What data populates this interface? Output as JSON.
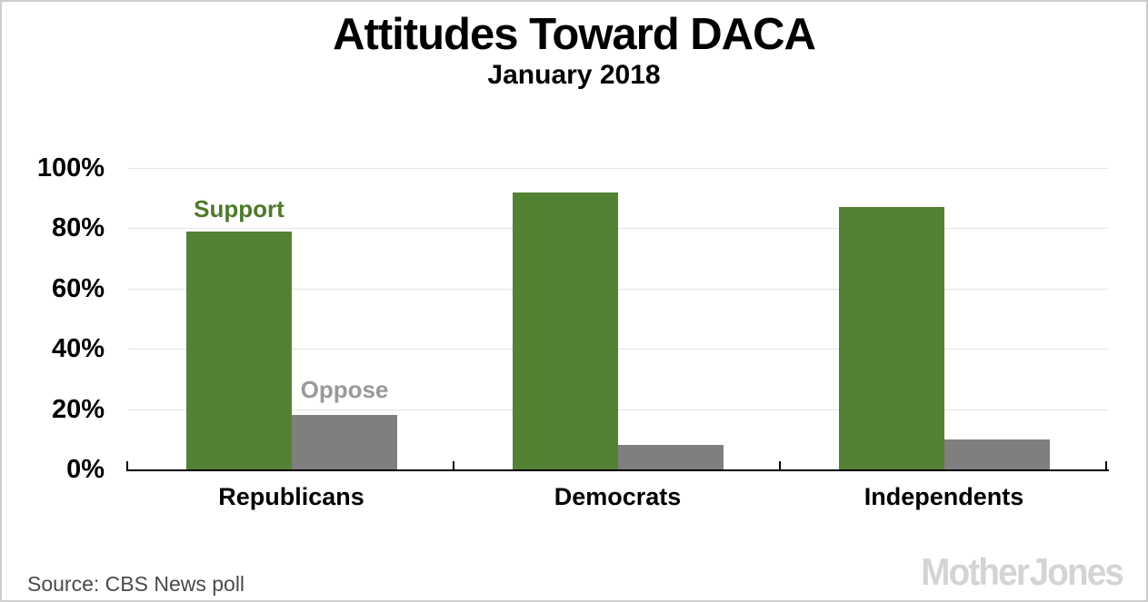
{
  "title": "Attitudes Toward DACA",
  "subtitle": "January 2018",
  "source_note": "Source: CBS News poll",
  "watermark": "Mother Jones",
  "colors": {
    "support_bar": "#548235",
    "oppose_bar": "#7f7f7f",
    "support_label": "#4e7a29",
    "oppose_label": "#999999",
    "gridline": "#e2e2e2",
    "axis": "#000000",
    "source_text": "#4a4a4a",
    "watermark": "#d4d4d4"
  },
  "chart_data": {
    "type": "bar",
    "categories": [
      "Republicans",
      "Democrats",
      "Independents"
    ],
    "series": [
      {
        "name": "Support",
        "values": [
          79,
          92,
          87
        ],
        "color": "#548235"
      },
      {
        "name": "Oppose",
        "values": [
          18,
          8,
          10
        ],
        "color": "#7f7f7f"
      }
    ],
    "title": "Attitudes Toward DACA",
    "subtitle": "January 2018",
    "xlabel": "",
    "ylabel": "",
    "ylim": [
      0,
      100
    ],
    "ytick_labels": [
      "100%",
      "80%",
      "60%",
      "40%",
      "20%",
      "0%"
    ],
    "grid": true,
    "legend_position": "inline-labels-above-first-group"
  }
}
